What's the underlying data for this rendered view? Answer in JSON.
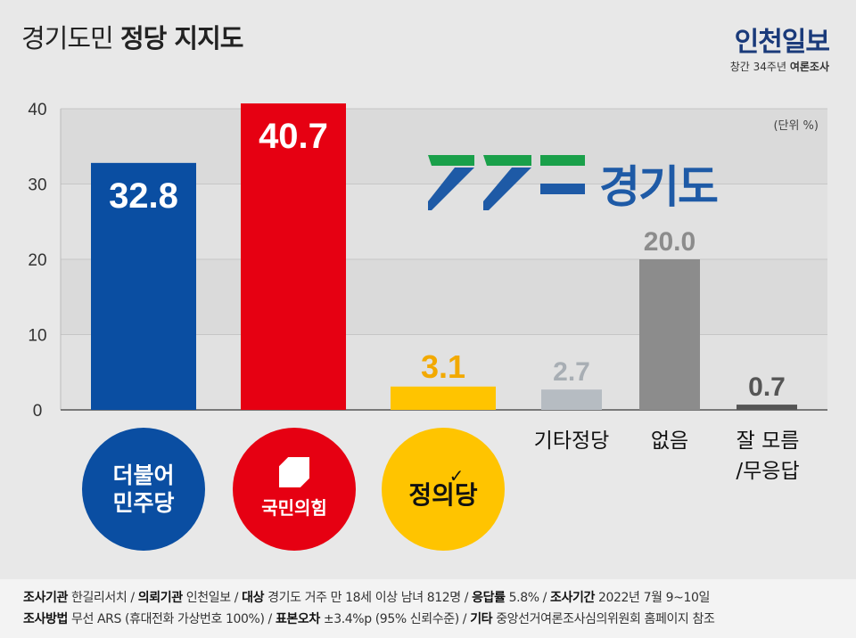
{
  "header": {
    "title_light": "경기도민",
    "title_bold": "정당 지지도",
    "brand": "인천일보",
    "sub_prefix": "창간 34주년",
    "sub_bold": "여론조사",
    "unit": "(단위 %)"
  },
  "logo": {
    "text": "경기도",
    "color": "#1e5aa6",
    "accent": "#1aa04a"
  },
  "chart_data": {
    "type": "bar",
    "categories": [
      "더불어민주당",
      "국민의힘",
      "정의당",
      "기타정당",
      "없음",
      "잘 모름/무응답"
    ],
    "values": [
      32.8,
      40.7,
      3.1,
      2.7,
      20.0,
      0.7
    ],
    "value_labels": [
      "32.8",
      "40.7",
      "3.1",
      "2.7",
      "20.0",
      "0.7"
    ],
    "colors": [
      "#0a4ea2",
      "#e60012",
      "#ffc400",
      "#b6bcc2",
      "#8c8c8c",
      "#555555"
    ],
    "yticks": [
      "40",
      "30",
      "20",
      "10",
      "0"
    ],
    "ylim": [
      0,
      40
    ]
  },
  "badges": [
    {
      "lines": [
        "더불어",
        "민주당"
      ],
      "color": "#0a4ea2",
      "text_color": "#ffffff"
    },
    {
      "lines": [
        "국민의힘"
      ],
      "color": "#e60012",
      "text_color": "#ffffff"
    },
    {
      "lines": [
        "정의당"
      ],
      "color": "#ffc400",
      "text_color": "#111111"
    }
  ],
  "text_labels": [
    {
      "lines": [
        "기타정당"
      ]
    },
    {
      "lines": [
        "없음"
      ]
    },
    {
      "lines": [
        "잘 모름",
        "/무응답"
      ]
    }
  ],
  "footer": {
    "line1": [
      {
        "k": "조사기관",
        "v": " 한길리서치 / "
      },
      {
        "k": "의뢰기관",
        "v": " 인천일보 / "
      },
      {
        "k": "대상",
        "v": " 경기도 거주 만 18세 이상 남녀 812명 / "
      },
      {
        "k": "응답률",
        "v": " 5.8% / "
      },
      {
        "k": "조사기간",
        "v": " 2022년 7월 9~10일"
      }
    ],
    "line2": [
      {
        "k": "조사방법",
        "v": " 무선 ARS (휴대전화 가상번호 100%) / "
      },
      {
        "k": "표본오차",
        "v": " ±3.4%p (95% 신뢰수준) / "
      },
      {
        "k": "기타",
        "v": " 중앙선거여론조사심의위원회 홈페이지 참조"
      }
    ]
  }
}
